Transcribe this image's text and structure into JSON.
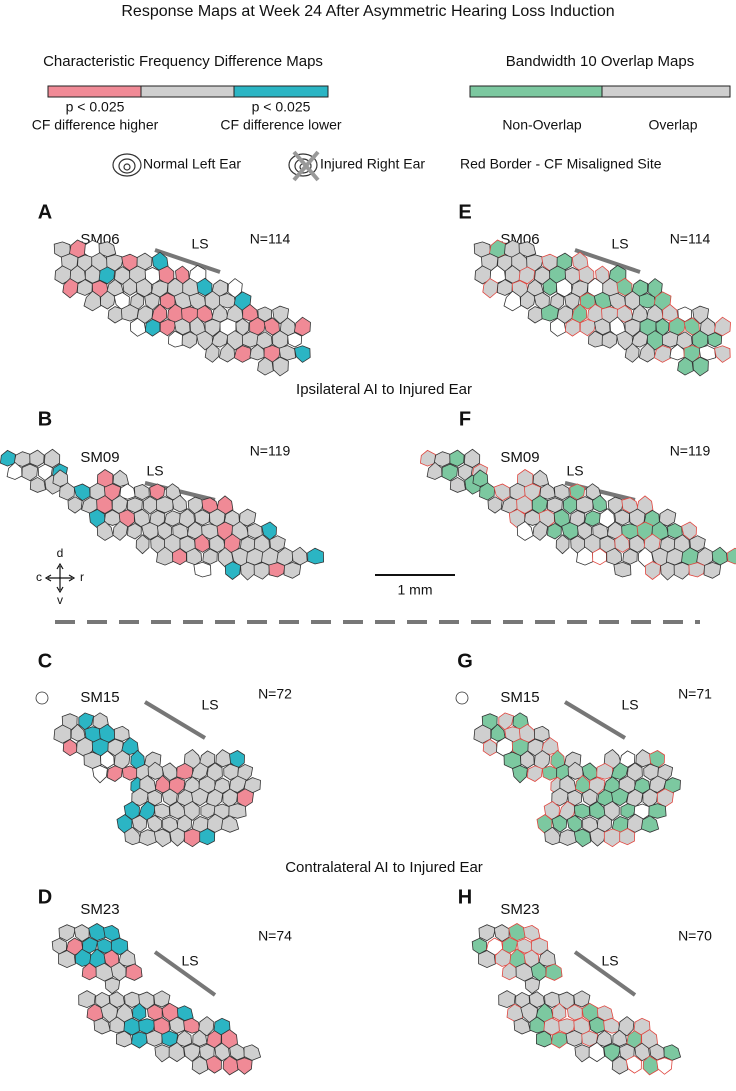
{
  "title": "Response Maps at Week 24 After Asymmetric Hearing Loss Induction",
  "legend_cf": {
    "heading": "Characteristic Frequency Difference Maps",
    "higher_p": "p < 0.025",
    "higher_label": "CF difference higher",
    "lower_p": "p < 0.025",
    "lower_label": "CF difference lower"
  },
  "legend_bw": {
    "heading": "Bandwidth 10 Overlap Maps",
    "non_overlap": "Non-Overlap",
    "overlap": "Overlap"
  },
  "ear_legend": {
    "left": "Normal Left Ear",
    "right": "Injured Right Ear",
    "border": "Red Border - CF Misaligned Site"
  },
  "sections": [
    "Ipsilateral AI to Injured Ear",
    "Contralateral AI to Injured Ear"
  ],
  "panels": [
    {
      "letter": "A",
      "subject": "SM06",
      "n": "N=114",
      "ls": "LS"
    },
    {
      "letter": "B",
      "subject": "SM09",
      "n": "N=119",
      "ls": "LS"
    },
    {
      "letter": "C",
      "subject": "SM15",
      "n": "N=72",
      "ls": "LS"
    },
    {
      "letter": "D",
      "subject": "SM23",
      "n": "N=74",
      "ls": "LS"
    },
    {
      "letter": "E",
      "subject": "SM06",
      "n": "N=114",
      "ls": "LS"
    },
    {
      "letter": "F",
      "subject": "SM09",
      "n": "N=119",
      "ls": "LS"
    },
    {
      "letter": "G",
      "subject": "SM15",
      "n": "N=71",
      "ls": "LS"
    },
    {
      "letter": "H",
      "subject": "SM23",
      "n": "N=70",
      "ls": "LS"
    }
  ],
  "orientation": {
    "d": "d",
    "v": "v",
    "c": "c",
    "r": "r"
  },
  "scale_bar": "1 mm"
}
